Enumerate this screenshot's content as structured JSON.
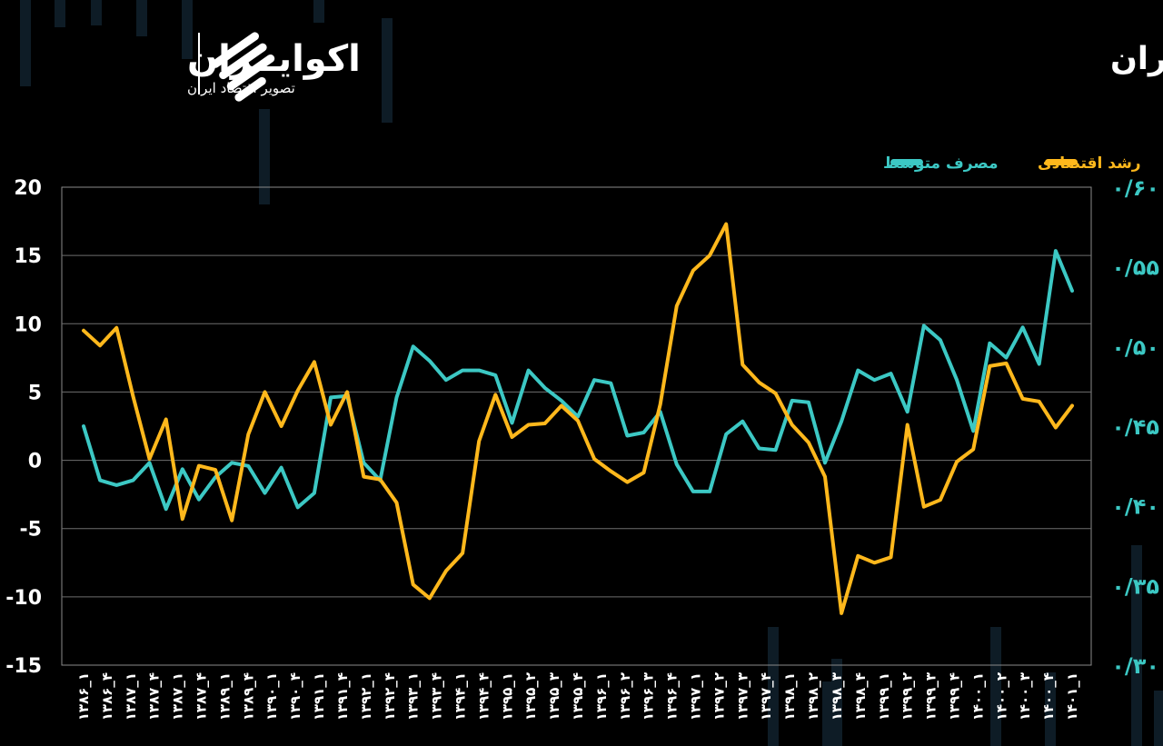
{
  "header": {
    "title": "رشد اقتصادی و مصرف متوسط در اقتصاد ایران",
    "brand_name": "اکوایــران",
    "brand_tagline": "تصویر اقتصاد ایران"
  },
  "colors": {
    "background": "#000000",
    "growth": "#FFB81C",
    "consumption": "#3CC8C4",
    "grid": "#6e6e6e",
    "text": "#ffffff"
  },
  "chart_data": {
    "type": "line",
    "title": "رشد اقتصادی و مصرف متوسط در اقتصاد ایران",
    "legend_position": "top-right",
    "y_left": {
      "range": [
        -15,
        20
      ],
      "ticks": [
        "20",
        "15",
        "10",
        "5",
        "0",
        "-5",
        "-10",
        "-15"
      ]
    },
    "y_right": {
      "range": [
        0.3,
        0.6
      ],
      "ticks": [
        "۰/۶۰",
        "۰/۵۵",
        "۰/۵۰",
        "۰/۴۵",
        "۰/۴۰",
        "۰/۳۵",
        "۰/۳۰"
      ]
    },
    "x_labels": [
      "۱۳۸۶_۱",
      "۱۳۸۶_۴",
      "۱۳۸۷_۱",
      "۱۳۸۷_۴",
      "۱۳۸۷_۱",
      "۱۳۸۷_۴",
      "۱۳۸۹_۱",
      "۱۳۸۹_۴",
      "۱۳۹۰_۱",
      "۱۳۹۰_۴",
      "۱۳۹۱_۱",
      "۱۳۹۱_۴",
      "۱۳۹۲_۱",
      "۱۳۹۲_۴",
      "۱۳۹۳_۱",
      "۱۳۹۳_۴",
      "۱۳۹۴_۱",
      "۱۳۹۴_۴",
      "۱۳۹۵_۱",
      "۱۳۹۵_۲",
      "۱۳۹۵_۳",
      "۱۳۹۵_۴",
      "۱۳۹۶_۱",
      "۱۳۹۶_۲",
      "۱۳۹۶_۳",
      "۱۳۹۶_۴",
      "۱۳۹۷_۱",
      "۱۳۹۷_۲",
      "۱۳۹۷_۳",
      "۱۳۹۷_۴",
      "۱۳۹۸_۱",
      "۱۳۹۸_۲",
      "۱۳۹۸_۳",
      "۱۳۹۸_۴",
      "۱۳۹۹_۱",
      "۱۳۹۹_۲",
      "۱۳۹۹_۳",
      "۱۳۹۹_۴",
      "۱۴۰۰_۱",
      "۱۴۰۰_۲",
      "۱۴۰۰_۳",
      "۱۴۰۰_۴",
      "۱۴۰۱_۱"
    ],
    "series": [
      {
        "name": "رشد اقتصادی",
        "axis": "left",
        "color": "#FFB81C",
        "values": [
          9.5,
          8.4,
          9.7,
          4.7,
          0.1,
          3.0,
          -4.3,
          -0.4,
          -0.7,
          -4.4,
          1.9,
          5.0,
          2.5,
          5.1,
          7.2,
          2.6,
          5.0,
          -1.2,
          -1.4,
          -3.1,
          -9.1,
          -10.1,
          -8.1,
          -6.8,
          1.4,
          4.8,
          1.7,
          2.6,
          2.7,
          4.0,
          2.9,
          0.1,
          -0.8,
          -1.6,
          -0.9,
          4.1,
          11.3,
          13.9,
          15.0,
          17.3,
          7.0,
          5.7,
          4.9,
          2.6,
          1.3,
          -1.2,
          -11.2,
          -7.0,
          -7.5,
          -7.1,
          2.6,
          -3.4,
          -2.9,
          -0.1,
          0.8,
          6.9,
          7.1,
          4.5,
          4.3,
          2.4,
          4.0
        ]
      },
      {
        "name": "مصرف متوسط",
        "axis": "right",
        "color": "#3CC8C4",
        "values": [
          0.45,
          0.416,
          0.413,
          0.416,
          0.427,
          0.398,
          0.423,
          0.404,
          0.418,
          0.427,
          0.425,
          0.408,
          0.424,
          0.399,
          0.408,
          0.468,
          0.469,
          0.427,
          0.416,
          0.468,
          0.5,
          0.491,
          0.479,
          0.485,
          0.485,
          0.482,
          0.452,
          0.485,
          0.474,
          0.466,
          0.456,
          0.479,
          0.477,
          0.444,
          0.446,
          0.459,
          0.426,
          0.409,
          0.409,
          0.445,
          0.453,
          0.436,
          0.435,
          0.466,
          0.465,
          0.427,
          0.453,
          0.485,
          0.479,
          0.483,
          0.459,
          0.513,
          0.504,
          0.479,
          0.447,
          0.502,
          0.493,
          0.512,
          0.489,
          0.56,
          0.535
        ]
      }
    ]
  }
}
